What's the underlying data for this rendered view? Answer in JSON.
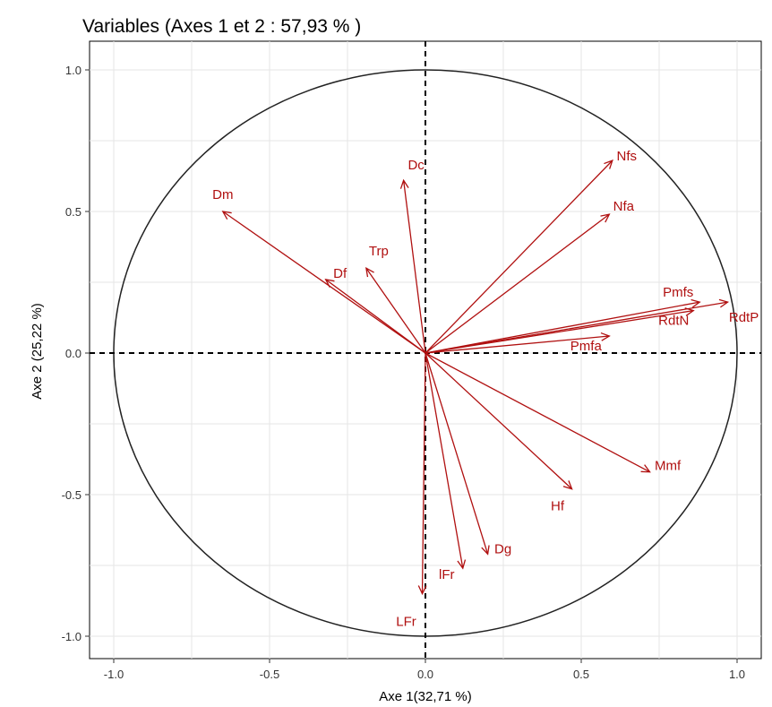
{
  "chart_data": {
    "type": "correlation-circle",
    "title": "Variables (Axes 1 et 2 : 57,93 % )",
    "xlabel": "Axe 1(32,71 %)",
    "ylabel": "Axe 2 (25,22 %)",
    "xlim": [
      -1.0,
      1.0
    ],
    "ylim": [
      -1.0,
      1.0
    ],
    "xticks": [
      {
        "value": -1.0,
        "label": "-1.0"
      },
      {
        "value": -0.5,
        "label": "-0.5"
      },
      {
        "value": 0.0,
        "label": "0.0"
      },
      {
        "value": 0.5,
        "label": "0.5"
      },
      {
        "value": 1.0,
        "label": "1.0"
      }
    ],
    "yticks": [
      {
        "value": -1.0,
        "label": "-1.0"
      },
      {
        "value": -0.5,
        "label": "-0.5"
      },
      {
        "value": 0.0,
        "label": "0.0"
      },
      {
        "value": 0.5,
        "label": "0.5"
      },
      {
        "value": 1.0,
        "label": "1.0"
      }
    ],
    "grid": true,
    "unit_circle": true,
    "colors": {
      "arrows": "#b01010",
      "circle": "#222222",
      "grid": "#e5e5e5",
      "reference_lines": "#000000"
    },
    "variables": [
      {
        "name": "Dm",
        "x": -0.65,
        "y": 0.5
      },
      {
        "name": "Dc",
        "x": -0.07,
        "y": 0.61
      },
      {
        "name": "Df",
        "x": -0.32,
        "y": 0.26
      },
      {
        "name": "Trp",
        "x": -0.19,
        "y": 0.3
      },
      {
        "name": "Nfs",
        "x": 0.6,
        "y": 0.68
      },
      {
        "name": "Nfa",
        "x": 0.59,
        "y": 0.49
      },
      {
        "name": "Pmfs",
        "x": 0.88,
        "y": 0.18
      },
      {
        "name": "RdtN",
        "x": 0.86,
        "y": 0.15
      },
      {
        "name": "RdtP",
        "x": 0.97,
        "y": 0.18
      },
      {
        "name": "Pmfa",
        "x": 0.59,
        "y": 0.06
      },
      {
        "name": "Mmf",
        "x": 0.72,
        "y": -0.42
      },
      {
        "name": "Hf",
        "x": 0.47,
        "y": -0.48
      },
      {
        "name": "Dg",
        "x": 0.2,
        "y": -0.71
      },
      {
        "name": "lFr",
        "x": 0.12,
        "y": -0.76
      },
      {
        "name": "LFr",
        "x": -0.01,
        "y": -0.85
      }
    ]
  }
}
